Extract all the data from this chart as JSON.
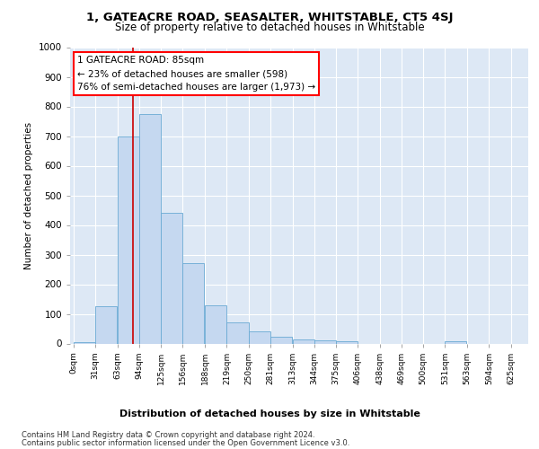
{
  "title": "1, GATEACRE ROAD, SEASALTER, WHITSTABLE, CT5 4SJ",
  "subtitle": "Size of property relative to detached houses in Whitstable",
  "xlabel": "Distribution of detached houses by size in Whitstable",
  "ylabel": "Number of detached properties",
  "bar_color": "#c5d8f0",
  "bar_edge_color": "#6aaad4",
  "background_color": "#dde8f5",
  "annotation_text": "1 GATEACRE ROAD: 85sqm\n← 23% of detached houses are smaller (598)\n76% of semi-detached houses are larger (1,973) →",
  "property_size": 85,
  "vline_color": "#cc0000",
  "categories": [
    "0sqm",
    "31sqm",
    "63sqm",
    "94sqm",
    "125sqm",
    "156sqm",
    "188sqm",
    "219sqm",
    "250sqm",
    "281sqm",
    "313sqm",
    "344sqm",
    "375sqm",
    "406sqm",
    "438sqm",
    "469sqm",
    "500sqm",
    "531sqm",
    "563sqm",
    "594sqm",
    "625sqm"
  ],
  "bin_edges": [
    0,
    31,
    63,
    94,
    125,
    156,
    188,
    219,
    250,
    281,
    313,
    344,
    375,
    406,
    438,
    469,
    500,
    531,
    563,
    594,
    625
  ],
  "values": [
    5,
    125,
    700,
    775,
    440,
    270,
    130,
    70,
    40,
    23,
    14,
    10,
    8,
    0,
    0,
    0,
    0,
    8,
    0,
    0,
    0
  ],
  "ylim": [
    0,
    1000
  ],
  "yticks": [
    0,
    100,
    200,
    300,
    400,
    500,
    600,
    700,
    800,
    900,
    1000
  ],
  "footnote1": "Contains HM Land Registry data © Crown copyright and database right 2024.",
  "footnote2": "Contains public sector information licensed under the Open Government Licence v3.0."
}
